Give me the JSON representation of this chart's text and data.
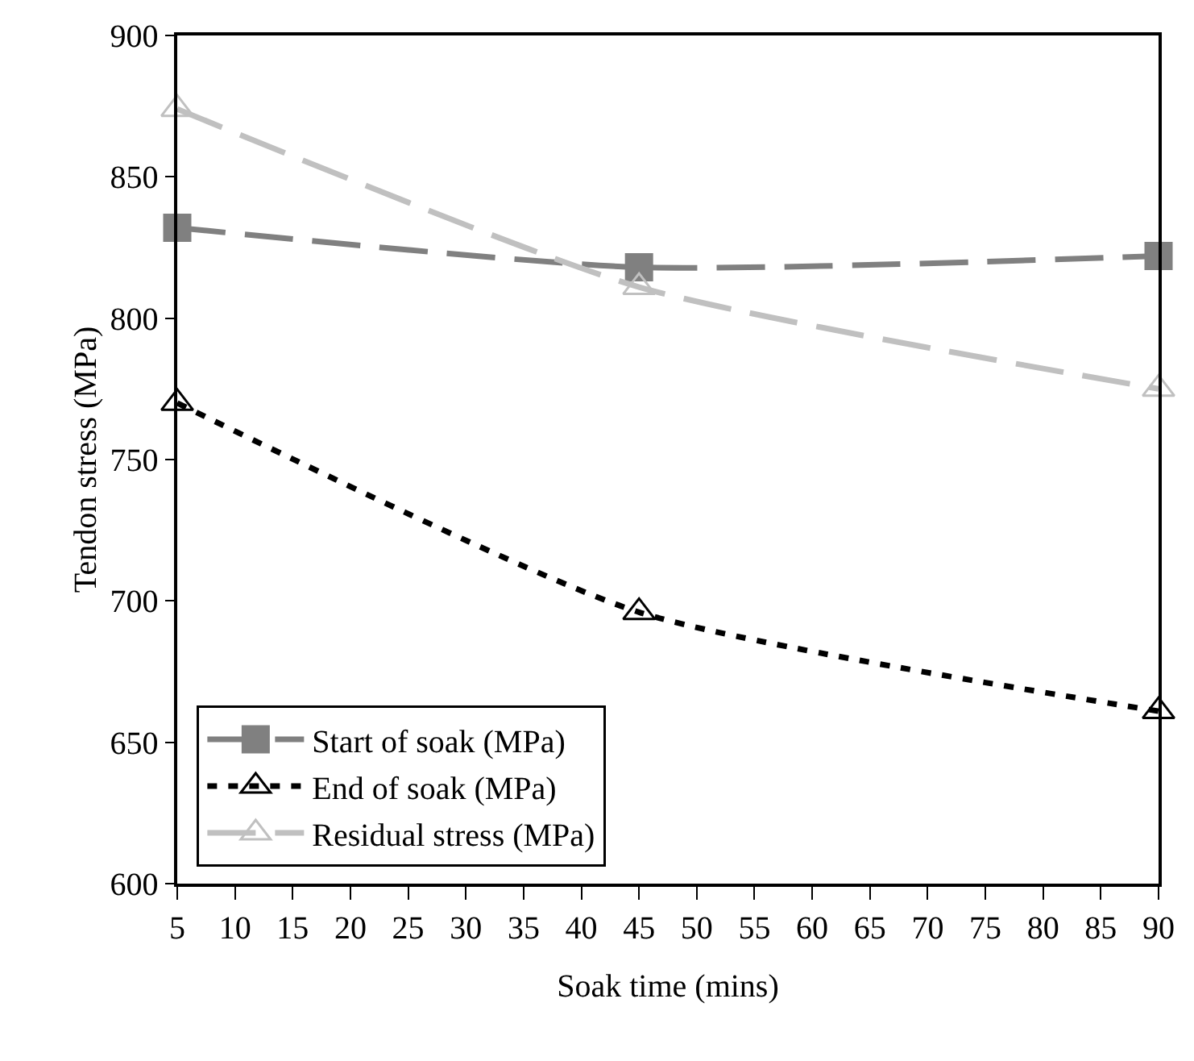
{
  "chart_data": {
    "type": "line",
    "xlabel": "Soak time (mins)",
    "ylabel": "Tendon stress (MPa)",
    "x": [
      5,
      45,
      90
    ],
    "series": [
      {
        "name": "Start of soak (MPa)",
        "color": "#808080",
        "values": [
          832,
          818,
          822
        ],
        "marker": "square",
        "line_style": "dashed"
      },
      {
        "name": "End of soak (MPa)",
        "color": "#000000",
        "values": [
          770,
          696,
          661
        ],
        "marker": "triangle",
        "line_style": "dotted"
      },
      {
        "name": "Residual stress (MPa)",
        "color": "#c0c0c0",
        "values": [
          874,
          811,
          775
        ],
        "marker": "triangle",
        "line_style": "dashed"
      }
    ],
    "xlim": [
      5,
      90
    ],
    "xticks": [
      5,
      10,
      15,
      20,
      25,
      30,
      35,
      40,
      45,
      50,
      55,
      60,
      65,
      70,
      75,
      80,
      85,
      90
    ],
    "ylim": [
      600,
      900
    ],
    "yticks": [
      600,
      650,
      700,
      750,
      800,
      850,
      900
    ],
    "grid": false,
    "legend": "bottom left"
  }
}
